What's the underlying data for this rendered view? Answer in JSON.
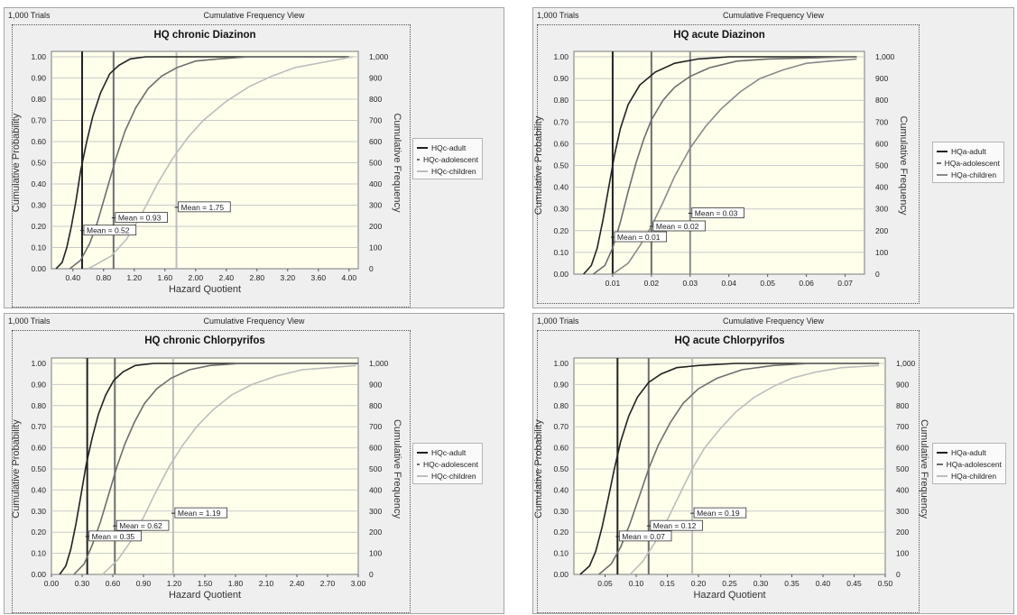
{
  "panels": [
    {
      "trials_label": "1,000 Trials",
      "view_label": "Cumulative Frequency View",
      "chart_data": {
        "type": "line",
        "title": "HQ chronic Diazinon",
        "xlabel": "Hazard Quotient",
        "ylabel": "Cumulative Probability",
        "y2label": "Cumulative Frequency",
        "xlim": [
          0.12,
          4.12
        ],
        "ylim": [
          0,
          1.0
        ],
        "xticks": [
          "0.40",
          "0.80",
          "1.20",
          "1.60",
          "2.00",
          "2.40",
          "2.80",
          "3.20",
          "3.60",
          "4.00"
        ],
        "yticks": [
          "0.00",
          "0.10",
          "0.20",
          "0.30",
          "0.40",
          "0.50",
          "0.60",
          "0.70",
          "0.80",
          "0.90",
          "1.00"
        ],
        "y2ticks": [
          "0",
          "100",
          "200",
          "300",
          "400",
          "500",
          "600",
          "700",
          "800",
          "900",
          "1,000"
        ],
        "legend_position": "right",
        "series": [
          {
            "name": "HQc-adult",
            "color": "#222222",
            "mean": 0.52,
            "x": [
              0.18,
              0.26,
              0.32,
              0.38,
              0.44,
              0.5,
              0.58,
              0.66,
              0.76,
              0.88,
              1.0,
              1.15,
              1.35,
              1.7,
              4.0
            ],
            "y": [
              0.0,
              0.03,
              0.1,
              0.2,
              0.32,
              0.46,
              0.6,
              0.72,
              0.83,
              0.92,
              0.96,
              0.99,
              1.0,
              1.0,
              1.0
            ]
          },
          {
            "name": "HQc-adolescent",
            "color": "#6e6e6e",
            "mean": 0.93,
            "x": [
              0.36,
              0.5,
              0.62,
              0.72,
              0.84,
              0.96,
              1.08,
              1.22,
              1.38,
              1.56,
              1.76,
              2.0,
              2.3,
              2.7,
              4.0
            ],
            "y": [
              0.0,
              0.04,
              0.12,
              0.22,
              0.37,
              0.52,
              0.65,
              0.76,
              0.85,
              0.91,
              0.95,
              0.98,
              0.99,
              1.0,
              1.0
            ]
          },
          {
            "name": "HQc-children",
            "color": "#bdbdbd",
            "mean": 1.75,
            "x": [
              0.6,
              0.9,
              1.1,
              1.3,
              1.5,
              1.7,
              1.9,
              2.1,
              2.4,
              2.7,
              3.0,
              3.3,
              3.6,
              3.9,
              4.05
            ],
            "y": [
              0.0,
              0.06,
              0.14,
              0.26,
              0.4,
              0.52,
              0.62,
              0.7,
              0.79,
              0.86,
              0.91,
              0.95,
              0.97,
              0.99,
              1.0
            ]
          }
        ],
        "mean_labels": [
          {
            "series": "HQc-adult",
            "text": "Mean = 0.52",
            "y": 0.18
          },
          {
            "series": "HQc-adolescent",
            "text": "Mean = 0.93",
            "y": 0.24
          },
          {
            "series": "HQc-children",
            "text": "Mean = 1.75",
            "y": 0.29
          }
        ]
      }
    },
    {
      "trials_label": "1,000 Trials",
      "view_label": "Cumulative Frequency View",
      "chart_data": {
        "type": "line",
        "title": "HQ acute Diazinon",
        "xlabel": "",
        "ylabel": "Cumulative Probability",
        "y2label": "Cumulative Frequency",
        "xlim": [
          0.0,
          0.075
        ],
        "ylim": [
          0,
          1.0
        ],
        "xticks": [
          "0.01",
          "0.02",
          "0.03",
          "0.04",
          "0.05",
          "0.06",
          "0.07"
        ],
        "yticks": [
          "0.00",
          "0.10",
          "0.20",
          "0.30",
          "0.40",
          "0.50",
          "0.60",
          "0.70",
          "0.80",
          "0.90",
          "1.00"
        ],
        "y2ticks": [
          "0",
          "100",
          "200",
          "300",
          "400",
          "500",
          "600",
          "700",
          "800",
          "900",
          "1,000"
        ],
        "legend_position": "right",
        "series": [
          {
            "name": "HQa-adult",
            "color": "#222222",
            "mean": 0.01,
            "x": [
              0.0025,
              0.0045,
              0.006,
              0.0075,
              0.009,
              0.0105,
              0.012,
              0.014,
              0.017,
              0.021,
              0.026,
              0.032,
              0.04,
              0.05,
              0.073
            ],
            "y": [
              0.0,
              0.04,
              0.12,
              0.25,
              0.4,
              0.55,
              0.67,
              0.78,
              0.87,
              0.93,
              0.97,
              0.99,
              1.0,
              1.0,
              1.0
            ]
          },
          {
            "name": "HQa-adolescent",
            "color": "#6e6e6e",
            "mean": 0.02,
            "x": [
              0.005,
              0.008,
              0.01,
              0.012,
              0.014,
              0.016,
              0.018,
              0.02,
              0.023,
              0.026,
              0.03,
              0.035,
              0.042,
              0.05,
              0.073
            ],
            "y": [
              0.0,
              0.04,
              0.12,
              0.24,
              0.38,
              0.51,
              0.62,
              0.71,
              0.8,
              0.86,
              0.91,
              0.95,
              0.98,
              0.99,
              1.0
            ]
          },
          {
            "name": "HQa-children",
            "color": "#8a8a8a",
            "mean": 0.03,
            "x": [
              0.01,
              0.014,
              0.017,
              0.02,
              0.023,
              0.026,
              0.03,
              0.034,
              0.038,
              0.043,
              0.048,
              0.054,
              0.06,
              0.066,
              0.073
            ],
            "y": [
              0.0,
              0.05,
              0.13,
              0.22,
              0.33,
              0.45,
              0.58,
              0.68,
              0.76,
              0.84,
              0.9,
              0.94,
              0.97,
              0.98,
              0.99
            ]
          }
        ],
        "mean_labels": [
          {
            "series": "HQa-adult",
            "text": "Mean = 0.01",
            "y": 0.17
          },
          {
            "series": "HQa-adolescent",
            "text": "Mean = 0.02",
            "y": 0.22
          },
          {
            "series": "HQa-children",
            "text": "Mean = 0.03",
            "y": 0.28
          }
        ]
      }
    },
    {
      "trials_label": "1,000 Trials",
      "view_label": "Cumulative Frequency View",
      "chart_data": {
        "type": "line",
        "title": "HQ chronic Chlorpyrifos",
        "xlabel": "Hazard Quotient",
        "ylabel": "Cumulative Probability",
        "y2label": "Cumulative Frequency",
        "xlim": [
          0.0,
          3.0
        ],
        "ylim": [
          0,
          1.0
        ],
        "xticks": [
          "0.00",
          "0.30",
          "0.60",
          "0.90",
          "1.20",
          "1.50",
          "1.80",
          "2.10",
          "2.40",
          "2.70",
          "3.00"
        ],
        "yticks": [
          "0.00",
          "0.10",
          "0.20",
          "0.30",
          "0.40",
          "0.50",
          "0.60",
          "0.70",
          "0.80",
          "0.90",
          "1.00"
        ],
        "y2ticks": [
          "0",
          "100",
          "200",
          "300",
          "400",
          "500",
          "600",
          "700",
          "800",
          "900",
          "1,000"
        ],
        "legend_position": "right",
        "series": [
          {
            "name": "HQc-adult",
            "color": "#222222",
            "mean": 0.35,
            "x": [
              0.08,
              0.14,
              0.19,
              0.24,
              0.29,
              0.34,
              0.4,
              0.46,
              0.53,
              0.61,
              0.7,
              0.82,
              1.0,
              1.3,
              3.0
            ],
            "y": [
              0.0,
              0.04,
              0.12,
              0.24,
              0.38,
              0.52,
              0.65,
              0.76,
              0.85,
              0.92,
              0.96,
              0.99,
              1.0,
              1.0,
              1.0
            ]
          },
          {
            "name": "HQc-adolescent",
            "color": "#6e6e6e",
            "mean": 0.62,
            "x": [
              0.22,
              0.32,
              0.4,
              0.48,
              0.56,
              0.64,
              0.72,
              0.81,
              0.91,
              1.03,
              1.17,
              1.35,
              1.55,
              1.85,
              3.0
            ],
            "y": [
              0.0,
              0.05,
              0.14,
              0.25,
              0.38,
              0.51,
              0.62,
              0.72,
              0.81,
              0.88,
              0.93,
              0.97,
              0.99,
              1.0,
              1.0
            ]
          },
          {
            "name": "HQc-children",
            "color": "#bdbdbd",
            "mean": 1.19,
            "x": [
              0.5,
              0.65,
              0.78,
              0.9,
              1.02,
              1.15,
              1.28,
              1.42,
              1.58,
              1.76,
              1.96,
              2.2,
              2.45,
              2.72,
              2.98
            ],
            "y": [
              0.0,
              0.07,
              0.16,
              0.27,
              0.39,
              0.51,
              0.61,
              0.7,
              0.78,
              0.85,
              0.9,
              0.94,
              0.97,
              0.98,
              0.99
            ]
          }
        ],
        "mean_labels": [
          {
            "series": "HQc-adult",
            "text": "Mean = 0.35",
            "y": 0.18
          },
          {
            "series": "HQc-adolescent",
            "text": "Mean = 0.62",
            "y": 0.23
          },
          {
            "series": "HQc-children",
            "text": "Mean = 1.19",
            "y": 0.29
          }
        ]
      }
    },
    {
      "trials_label": "1,000 Trials",
      "view_label": "Cumulative Frequency View",
      "chart_data": {
        "type": "line",
        "title": "HQ acute Chlorpyrifos",
        "xlabel": "Hazard Quotient",
        "ylabel": "Cumulative Probability",
        "y2label": "Cumulative Frequency",
        "xlim": [
          0.0,
          0.5
        ],
        "ylim": [
          0,
          1.0
        ],
        "xticks": [
          "0.05",
          "0.10",
          "0.15",
          "0.20",
          "0.25",
          "0.30",
          "0.35",
          "0.40",
          "0.45",
          "0.50"
        ],
        "yticks": [
          "0.00",
          "0.10",
          "0.20",
          "0.30",
          "0.40",
          "0.50",
          "0.60",
          "0.70",
          "0.80",
          "0.90",
          "1.00"
        ],
        "y2ticks": [
          "0",
          "100",
          "200",
          "300",
          "400",
          "500",
          "600",
          "700",
          "800",
          "900",
          "1,000"
        ],
        "legend_position": "right",
        "series": [
          {
            "name": "HQa-adult",
            "color": "#222222",
            "mean": 0.07,
            "x": [
              0.01,
              0.025,
              0.035,
              0.045,
              0.055,
              0.065,
              0.075,
              0.088,
              0.102,
              0.12,
              0.14,
              0.165,
              0.2,
              0.26,
              0.49
            ],
            "y": [
              0.0,
              0.04,
              0.11,
              0.22,
              0.36,
              0.5,
              0.63,
              0.75,
              0.84,
              0.91,
              0.95,
              0.98,
              0.99,
              1.0,
              1.0
            ]
          },
          {
            "name": "HQa-adolescent",
            "color": "#6e6e6e",
            "mean": 0.12,
            "x": [
              0.04,
              0.06,
              0.075,
              0.09,
              0.105,
              0.12,
              0.135,
              0.155,
              0.175,
              0.2,
              0.23,
              0.27,
              0.32,
              0.38,
              0.49
            ],
            "y": [
              0.0,
              0.05,
              0.13,
              0.24,
              0.37,
              0.5,
              0.61,
              0.72,
              0.81,
              0.88,
              0.93,
              0.97,
              0.99,
              1.0,
              1.0
            ]
          },
          {
            "name": "HQa-children",
            "color": "#bdbdbd",
            "mean": 0.19,
            "x": [
              0.09,
              0.11,
              0.13,
              0.15,
              0.17,
              0.19,
              0.21,
              0.235,
              0.26,
              0.29,
              0.32,
              0.35,
              0.39,
              0.43,
              0.49
            ],
            "y": [
              0.0,
              0.06,
              0.15,
              0.26,
              0.38,
              0.5,
              0.6,
              0.69,
              0.77,
              0.84,
              0.89,
              0.93,
              0.96,
              0.98,
              0.99
            ]
          }
        ],
        "mean_labels": [
          {
            "series": "HQa-adult",
            "text": "Mean = 0.07",
            "y": 0.18
          },
          {
            "series": "HQa-adolescent",
            "text": "Mean = 0.12",
            "y": 0.23
          },
          {
            "series": "HQa-children",
            "text": "Mean = 0.19",
            "y": 0.29
          }
        ]
      }
    }
  ]
}
